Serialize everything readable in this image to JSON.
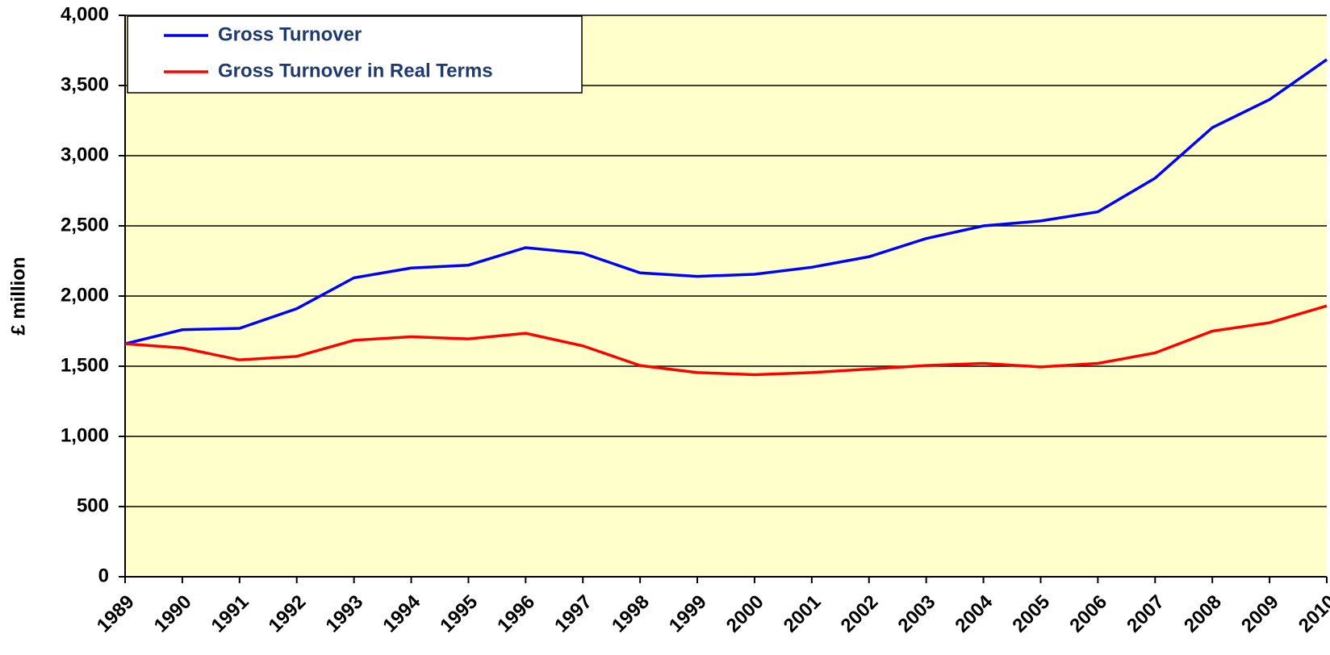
{
  "chart_data": {
    "type": "line",
    "y_label": "£ million",
    "x": [
      1989,
      1990,
      1991,
      1992,
      1993,
      1994,
      1995,
      1996,
      1997,
      1998,
      1999,
      2000,
      2001,
      2002,
      2003,
      2004,
      2005,
      2006,
      2007,
      2008,
      2009,
      2010
    ],
    "series": [
      {
        "name": "Gross Turnover",
        "color": "#0000ff",
        "values": [
          1660,
          1760,
          1770,
          1910,
          2130,
          2200,
          2220,
          2345,
          2305,
          2165,
          2140,
          2155,
          2205,
          2280,
          2410,
          2500,
          2535,
          2600,
          2840,
          3200,
          3400,
          3685
        ]
      },
      {
        "name": "Gross Turnover in Real Terms",
        "color": "#ff0000",
        "values": [
          1660,
          1630,
          1545,
          1570,
          1685,
          1710,
          1695,
          1735,
          1645,
          1505,
          1455,
          1440,
          1455,
          1480,
          1505,
          1520,
          1495,
          1520,
          1595,
          1750,
          1810,
          1930
        ]
      }
    ],
    "xlim": [
      1989,
      2010
    ],
    "xticks": [
      1989,
      1990,
      1991,
      1992,
      1993,
      1994,
      1995,
      1996,
      1997,
      1998,
      1999,
      2000,
      2001,
      2002,
      2003,
      2004,
      2005,
      2006,
      2007,
      2008,
      2009,
      2010
    ],
    "ylim": [
      0,
      4000
    ],
    "yticks": [
      0,
      500,
      {
        "value": 1000,
        "label": "1,000"
      },
      {
        "value": 1500,
        "label": "1,500"
      },
      {
        "value": 2000,
        "label": "2,000"
      },
      {
        "value": 2500,
        "label": "2,500"
      },
      {
        "value": 3000,
        "label": "3,000"
      },
      {
        "value": 3500,
        "label": "3,500"
      },
      {
        "value": 4000,
        "label": "4,000"
      }
    ],
    "grid": true,
    "legend": "upper-left",
    "plot_background": "#ffffcc"
  }
}
